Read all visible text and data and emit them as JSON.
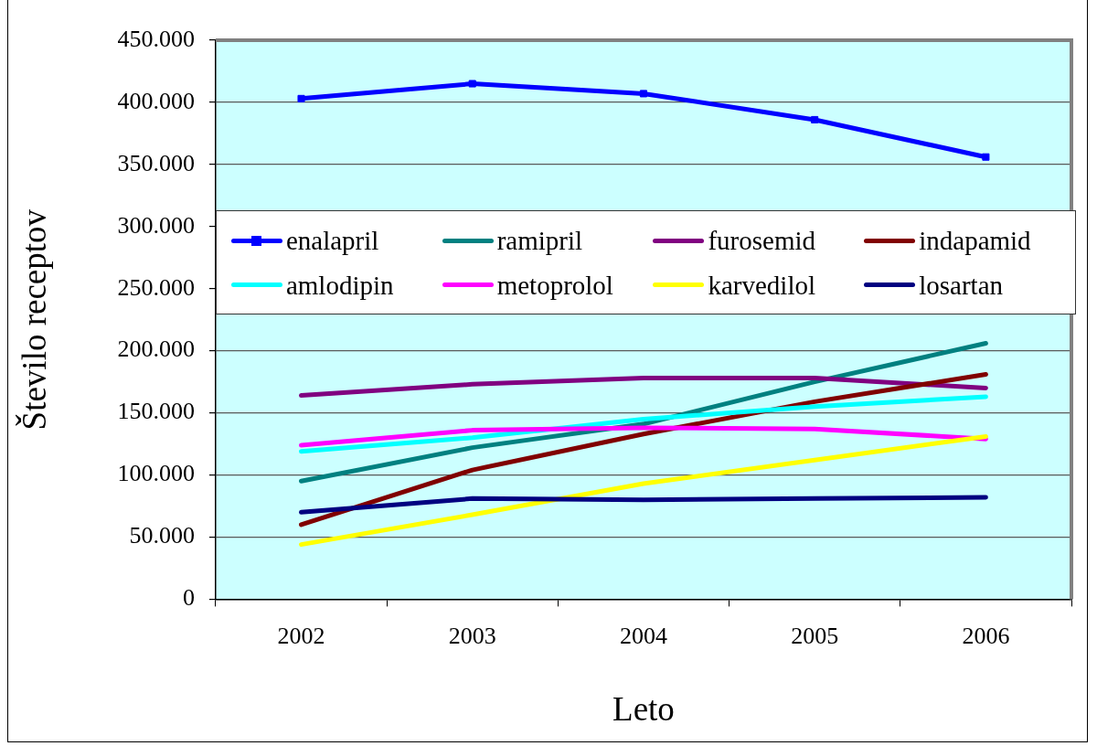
{
  "chart_data": {
    "type": "line",
    "xlabel": "Leto",
    "ylabel": "Število receptov",
    "categories": [
      "2002",
      "2003",
      "2004",
      "2005",
      "2006"
    ],
    "series": [
      {
        "name": "enalapril",
        "color": "#0000ff",
        "marker": "square",
        "values": [
          403000,
          415000,
          407000,
          386000,
          356000
        ]
      },
      {
        "name": "ramipril",
        "color": "#008080",
        "values": [
          95000,
          122000,
          141000,
          175000,
          206000
        ]
      },
      {
        "name": "furosemid",
        "color": "#800080",
        "values": [
          164000,
          173000,
          178000,
          178000,
          170000
        ]
      },
      {
        "name": "indapamid",
        "color": "#800000",
        "values": [
          60000,
          104000,
          133000,
          159000,
          181000
        ]
      },
      {
        "name": "amlodipin",
        "color": "#00ffff",
        "values": [
          119000,
          130000,
          145000,
          155000,
          163000
        ]
      },
      {
        "name": "metoprolol",
        "color": "#ff00ff",
        "values": [
          124000,
          136000,
          138000,
          137000,
          129000
        ]
      },
      {
        "name": "karvedilol",
        "color": "#ffff00",
        "values": [
          44000,
          68000,
          93000,
          112000,
          131000
        ]
      },
      {
        "name": "losartan",
        "color": "#000080",
        "values": [
          70000,
          81000,
          80000,
          81000,
          82000
        ]
      }
    ],
    "ylim": [
      0,
      450000
    ],
    "yticks": [
      0,
      {
        "value": 50000,
        "label": "50.000"
      },
      {
        "value": 100000,
        "label": "100.000"
      },
      {
        "value": 150000,
        "label": "150.000"
      },
      {
        "value": 200000,
        "label": "200.000"
      },
      {
        "value": 250000,
        "label": "250.000"
      },
      {
        "value": 300000,
        "label": "300.000"
      },
      {
        "value": 350000,
        "label": "350.000"
      },
      {
        "value": 400000,
        "label": "400.000"
      },
      {
        "value": 450000,
        "label": "450.000"
      }
    ],
    "grid": "y",
    "legend": "top"
  }
}
